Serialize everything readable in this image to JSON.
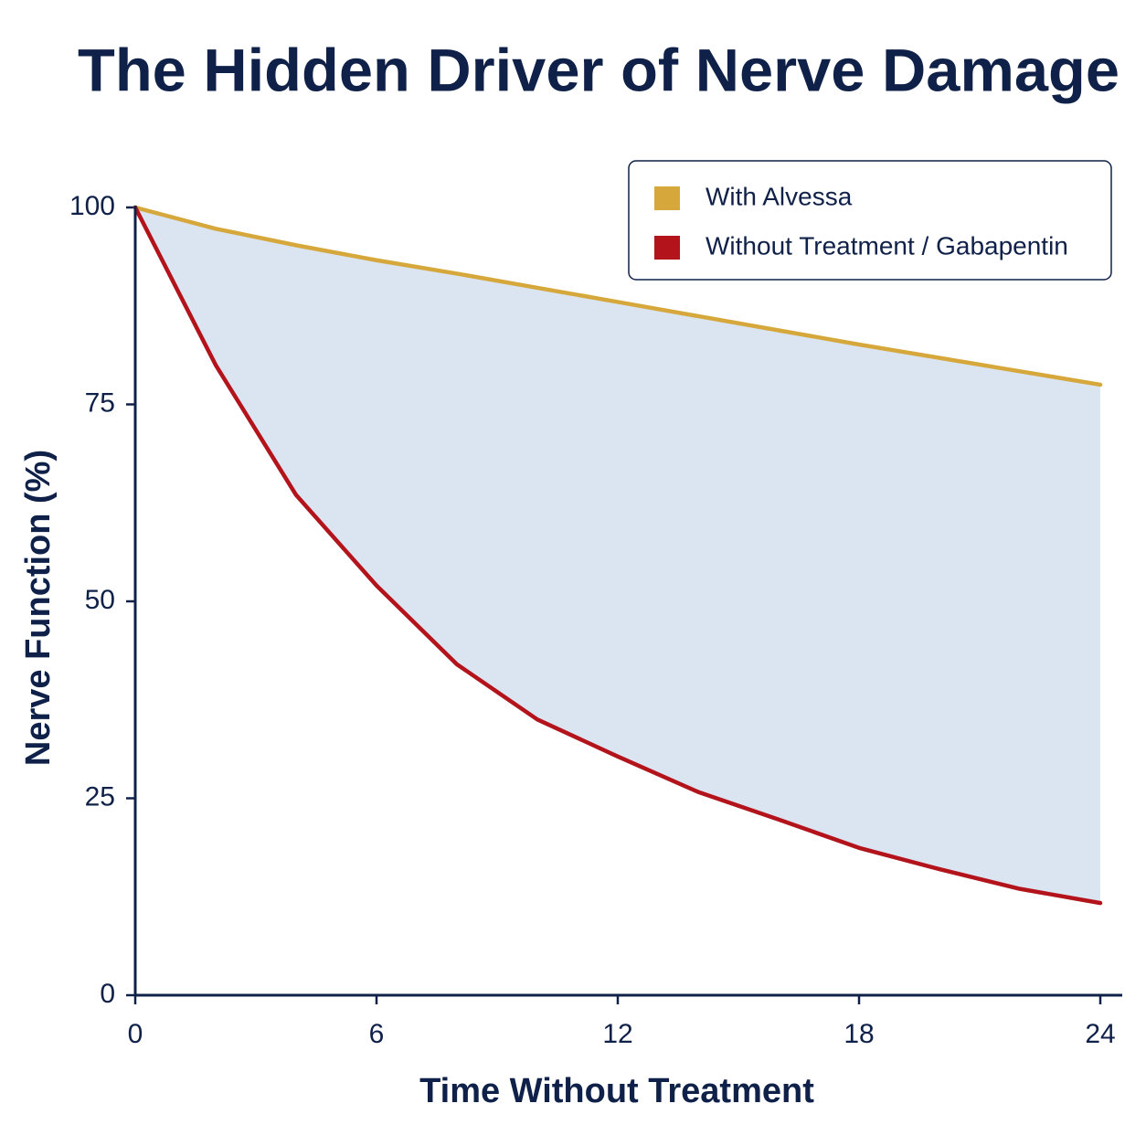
{
  "chart_data": {
    "type": "line",
    "title": "The Hidden Driver of Nerve Damage",
    "x_label": "Time Without Treatment",
    "y_label": "Nerve Function (%)",
    "x": [
      0,
      2,
      4,
      6,
      8,
      10,
      12,
      14,
      16,
      18,
      20,
      22,
      24
    ],
    "series": [
      {
        "name": "With Alvessa",
        "color": "#d6a83c",
        "values": [
          100,
          97.3,
          95.2,
          93.3,
          91.6,
          89.8,
          88,
          86.2,
          84.4,
          82.6,
          80.9,
          79.2,
          77.5
        ]
      },
      {
        "name": "Without Treatment / Gabapentin",
        "color": "#b3141b",
        "values": [
          100,
          80,
          63.5,
          52,
          42,
          35,
          30.3,
          25.8,
          22.3,
          18.7,
          16,
          13.5,
          11.7
        ]
      }
    ],
    "fill_between": "#dbe4f1",
    "xlim": [
      0,
      24.5
    ],
    "xticks": [
      0,
      6,
      12,
      18,
      24
    ],
    "ylim": [
      0,
      100
    ],
    "yticks": [
      0,
      25,
      50,
      75,
      100
    ],
    "legend": "upper right"
  }
}
